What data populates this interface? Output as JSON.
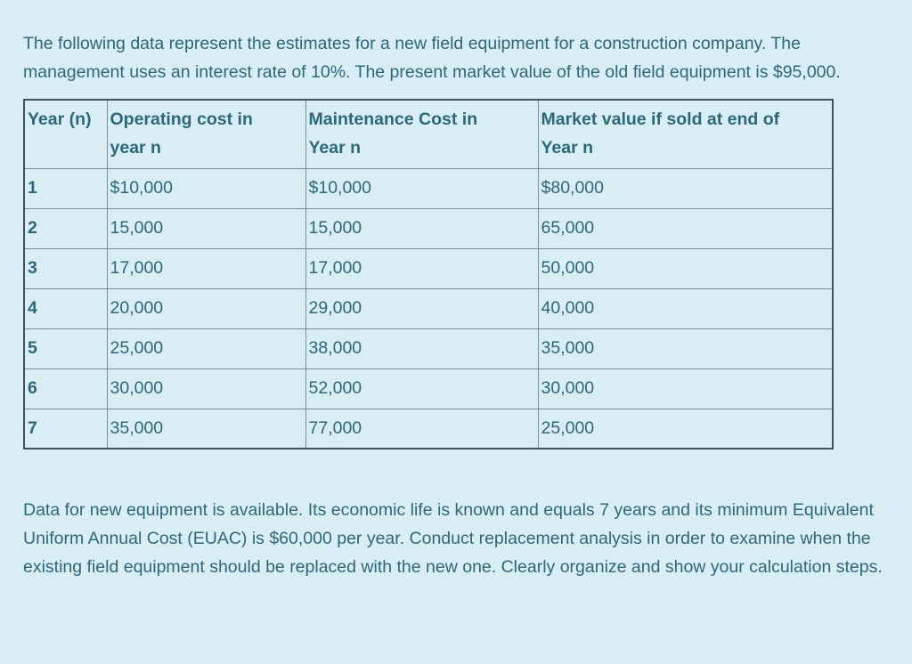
{
  "page": {
    "background_color": "#d8edf4",
    "text_color": "#2e6878",
    "outer_border_color": "#43525a",
    "inner_border_color": "#7e8c91"
  },
  "intro_paragraph": "The following data represent the estimates for a new field equipment for a construction company. The management uses an interest rate of 10%. The present market value of the old field equipment is $95,000.",
  "table": {
    "headers": [
      {
        "line1": "Year (n)",
        "line2": ""
      },
      {
        "line1": "Operating cost in",
        "line2": "year n"
      },
      {
        "line1": "Maintenance Cost in",
        "line2": "Year n"
      },
      {
        "line1": "Market value if sold at end of",
        "line2": "Year n"
      }
    ],
    "rows": [
      [
        "1",
        "$10,000",
        "$10,000",
        "$80,000"
      ],
      [
        "2",
        "15,000",
        "15,000",
        "65,000"
      ],
      [
        "3",
        "17,000",
        "17,000",
        "50,000"
      ],
      [
        "4",
        "20,000",
        "29,000",
        "40,000"
      ],
      [
        "5",
        "25,000",
        "38,000",
        "35,000"
      ],
      [
        "6",
        "30,000",
        "52,000",
        "30,000"
      ],
      [
        "7",
        "35,000",
        "77,000",
        "25,000"
      ]
    ]
  },
  "closing_paragraph": "Data for new equipment is available. Its economic life is known and equals 7 years and its minimum Equivalent Uniform Annual Cost (EUAC) is $60,000 per year. Conduct replacement analysis in order to examine when the existing field equipment should be replaced with the new one. Clearly organize and show your calculation steps."
}
